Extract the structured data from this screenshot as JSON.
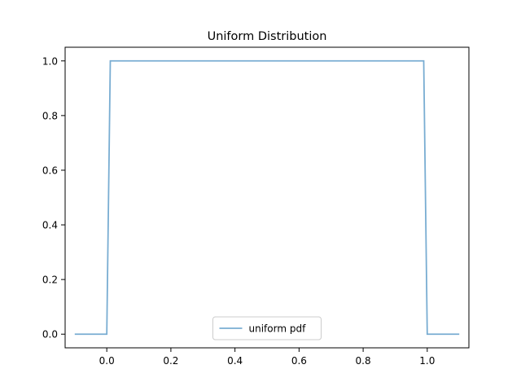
{
  "chart_data": {
    "type": "line",
    "title": "Uniform Distribution",
    "xlabel": "",
    "ylabel": "",
    "xlim": [
      -0.13,
      1.13
    ],
    "ylim": [
      -0.05,
      1.05
    ],
    "xticks": [
      0.0,
      0.2,
      0.4,
      0.6,
      0.8,
      1.0
    ],
    "xtick_labels": [
      "0.0",
      "0.2",
      "0.4",
      "0.6",
      "0.8",
      "1.0"
    ],
    "yticks": [
      0.0,
      0.2,
      0.4,
      0.6,
      0.8,
      1.0
    ],
    "ytick_labels": [
      "0.0",
      "0.2",
      "0.4",
      "0.6",
      "0.8",
      "1.0"
    ],
    "grid": false,
    "legend": {
      "placement": "lower center"
    },
    "series": [
      {
        "name": "uniform pdf",
        "color": "#1f77b4",
        "opacity": 0.6,
        "x": [
          -0.1,
          0.0,
          0.011,
          0.989,
          1.0,
          1.1
        ],
        "y": [
          0.0,
          0.0,
          1.0,
          1.0,
          0.0,
          0.0
        ]
      }
    ]
  }
}
